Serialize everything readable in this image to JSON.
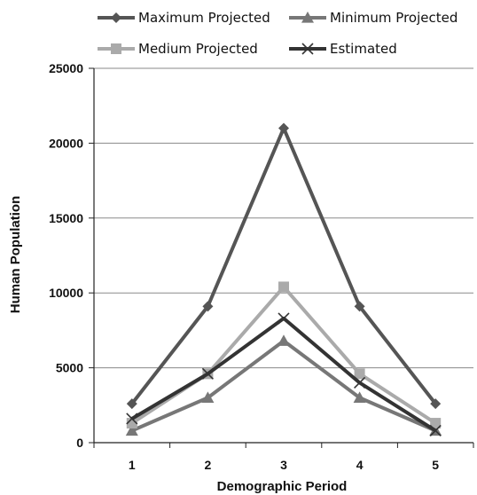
{
  "chart_data": {
    "type": "line",
    "xlabel": "Demographic Period",
    "ylabel": "Human Population",
    "categories": [
      "1",
      "2",
      "3",
      "4",
      "5"
    ],
    "ylim": [
      0,
      25000
    ],
    "yticks": [
      0,
      5000,
      10000,
      15000,
      20000,
      25000
    ],
    "grid": true,
    "legend_position": "top",
    "series": [
      {
        "name": "Maximum Projected",
        "values": [
          2600,
          9100,
          21000,
          9100,
          2600
        ],
        "color": "#555555",
        "marker": "diamond"
      },
      {
        "name": "Minimum Projected",
        "values": [
          800,
          3000,
          6800,
          3000,
          800
        ],
        "color": "#777777",
        "marker": "triangle"
      },
      {
        "name": "Medium Projected",
        "values": [
          1300,
          4600,
          10400,
          4600,
          1300
        ],
        "color": "#aaaaaa",
        "marker": "square"
      },
      {
        "name": "Estimated",
        "values": [
          1600,
          4600,
          8300,
          4000,
          800
        ],
        "color": "#333333",
        "marker": "x"
      }
    ]
  }
}
